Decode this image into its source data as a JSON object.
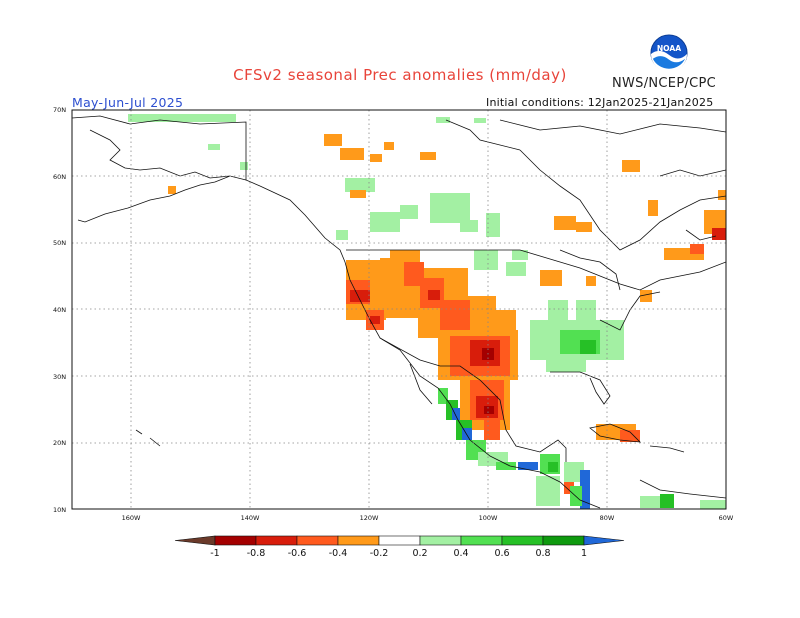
{
  "title": "CFSv2 seasonal Prec anomalies (mm/day)",
  "agency": "NWS/NCEP/CPC",
  "logo_text": "NOAA",
  "season": "May-Jun-Jul 2025",
  "initial_conditions": "Initial conditions: 12Jan2025-21Jan2025",
  "lat_labels": [
    "70N",
    "60N",
    "50N",
    "40N",
    "30N",
    "20N",
    "10N"
  ],
  "lon_labels": [
    "160W",
    "140W",
    "120W",
    "100W",
    "80W",
    "60W"
  ],
  "colorbar": {
    "labels": [
      "-1",
      "-0.8",
      "-0.6",
      "-0.4",
      "-0.2",
      "0.2",
      "0.4",
      "0.6",
      "0.8",
      "1"
    ],
    "colors": [
      "#6b3a2a",
      "#a40000",
      "#d81d0b",
      "#ff5a1e",
      "#ff9a1a",
      "#ffffff",
      "#a3f0a3",
      "#52e052",
      "#26c026",
      "#0f9a0f",
      "#2068d8"
    ]
  }
}
